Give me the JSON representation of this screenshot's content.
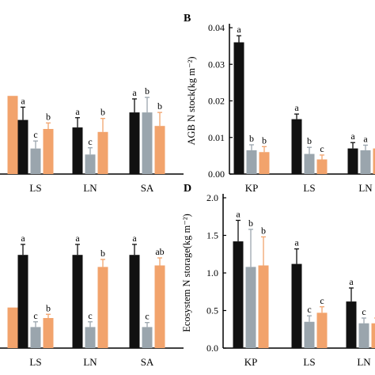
{
  "colors": {
    "black": "#111111",
    "gray": "#9aa5ad",
    "orange": "#f2a36c",
    "axis": "#000000"
  },
  "chart_data": [
    {
      "panel": "A",
      "panel_label": "",
      "type": "bar",
      "title": "",
      "xlabel": "",
      "ylabel": "",
      "categories": [
        "",
        "LS",
        "LN",
        "SA"
      ],
      "ylim": [
        0,
        1
      ],
      "yticks": [],
      "series": [
        {
          "color_key": "black",
          "values": [
            null,
            0.36,
            0.31,
            0.41
          ],
          "err": [
            null,
            0.085,
            0.065,
            0.09
          ],
          "letters": [
            null,
            "a",
            "a",
            "a"
          ]
        },
        {
          "color_key": "gray",
          "values": [
            null,
            0.17,
            0.13,
            0.41
          ],
          "err": [
            null,
            0.05,
            0.045,
            0.1
          ],
          "letters": [
            null,
            "c",
            "c",
            "b"
          ]
        },
        {
          "color_key": "orange",
          "values": [
            0.52,
            0.3,
            0.28,
            0.32
          ],
          "err": [
            null,
            0.04,
            0.09,
            0.09
          ],
          "letters": [
            null,
            "b",
            "b",
            "b"
          ]
        }
      ]
    },
    {
      "panel": "B",
      "panel_label": "B",
      "type": "bar",
      "title": "",
      "xlabel": "",
      "ylabel": "AGB N stock(kg m⁻²)",
      "categories": [
        "KP",
        "LS",
        "LN"
      ],
      "ylim": [
        0,
        0.04
      ],
      "yticks": [
        "0.00",
        "0.01",
        "0.02",
        "0.03",
        "0.04"
      ],
      "series": [
        {
          "color_key": "black",
          "values": [
            0.036,
            0.015,
            0.007
          ],
          "err": [
            0.0018,
            0.0014,
            0.0016
          ],
          "letters": [
            "a",
            "a",
            "a"
          ]
        },
        {
          "color_key": "gray",
          "values": [
            0.0065,
            0.0055,
            0.0065
          ],
          "err": [
            0.0015,
            0.0018,
            0.0014
          ],
          "letters": [
            "b",
            "b",
            "a"
          ]
        },
        {
          "color_key": "orange",
          "values": [
            0.006,
            0.004,
            0.007
          ],
          "err": [
            0.0015,
            0.0012,
            0.001
          ],
          "letters": [
            "b",
            "c",
            ""
          ]
        }
      ]
    },
    {
      "panel": "C",
      "panel_label": "",
      "type": "bar",
      "title": "",
      "xlabel": "",
      "ylabel": "",
      "categories": [
        "",
        "LS",
        "LN",
        "SA"
      ],
      "ylim": [
        0,
        1
      ],
      "yticks": [],
      "series": [
        {
          "color_key": "black",
          "values": [
            null,
            0.62,
            0.62,
            0.62
          ],
          "err": [
            null,
            0.07,
            0.07,
            0.07
          ],
          "letters": [
            null,
            "a",
            "a",
            "a"
          ]
        },
        {
          "color_key": "gray",
          "values": [
            null,
            0.14,
            0.14,
            0.14
          ],
          "err": [
            null,
            0.035,
            0.035,
            0.03
          ],
          "letters": [
            null,
            "c",
            "c",
            "c"
          ]
        },
        {
          "color_key": "orange",
          "values": [
            0.27,
            0.2,
            0.54,
            0.55
          ],
          "err": [
            null,
            0.025,
            0.05,
            0.05
          ],
          "letters": [
            null,
            "b",
            "b",
            "ab"
          ]
        }
      ]
    },
    {
      "panel": "D",
      "panel_label": "D",
      "type": "bar",
      "title": "",
      "xlabel": "",
      "ylabel": "Ecosystem N storage(kg m⁻²)",
      "categories": [
        "KP",
        "LS",
        "LN"
      ],
      "ylim": [
        0,
        2.0
      ],
      "yticks": [
        "0.0",
        "0.5",
        "1.0",
        "1.5",
        "2.0"
      ],
      "series": [
        {
          "color_key": "black",
          "values": [
            1.42,
            1.12,
            0.62
          ],
          "err": [
            0.28,
            0.2,
            0.18
          ],
          "letters": [
            "a",
            "a",
            "a"
          ]
        },
        {
          "color_key": "gray",
          "values": [
            1.08,
            0.35,
            0.33
          ],
          "err": [
            0.5,
            0.08,
            0.07
          ],
          "letters": [
            "b",
            "c",
            "c"
          ]
        },
        {
          "color_key": "orange",
          "values": [
            1.1,
            0.47,
            0.33
          ],
          "err": [
            0.38,
            0.08,
            0.07
          ],
          "letters": [
            "b",
            "c",
            ""
          ]
        }
      ]
    }
  ]
}
